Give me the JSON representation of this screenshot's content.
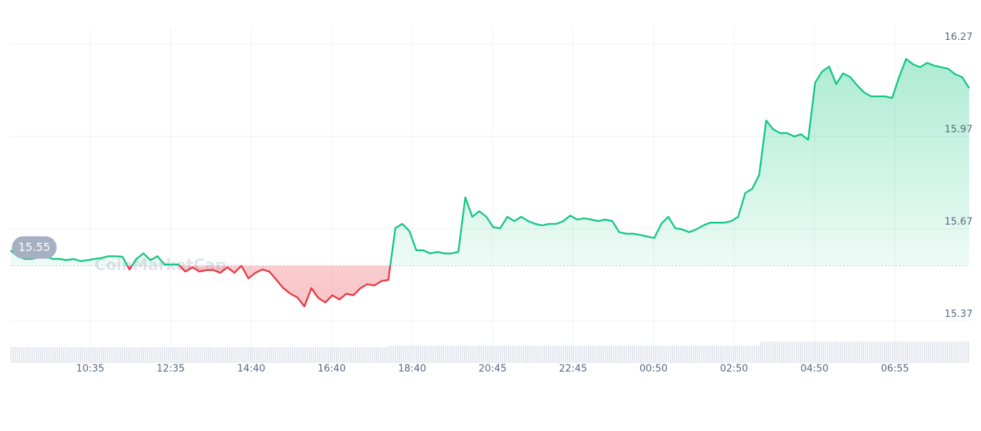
{
  "chart_data": {
    "type": "line",
    "watermark": "CoinMarketCap",
    "baseline": 15.55,
    "up_color": "#16c784",
    "down_color": "#ea3943",
    "xlim": [
      0,
      137
    ],
    "ylim": [
      15.37,
      16.27
    ],
    "yticks": [
      15.37,
      15.67,
      15.97,
      16.27
    ],
    "xticks": [
      {
        "value": 11.4,
        "label": "10:35"
      },
      {
        "value": 22.9,
        "label": "12:35"
      },
      {
        "value": 34.4,
        "label": "14:40"
      },
      {
        "value": 45.9,
        "label": "16:40"
      },
      {
        "value": 57.4,
        "label": "18:40"
      },
      {
        "value": 68.9,
        "label": "20:45"
      },
      {
        "value": 80.4,
        "label": "22:45"
      },
      {
        "value": 91.9,
        "label": "00:50"
      },
      {
        "value": 103.4,
        "label": "02:50"
      },
      {
        "value": 114.9,
        "label": "04:50"
      },
      {
        "value": 126.4,
        "label": "06:55"
      }
    ],
    "grid": true,
    "values": [
      15.6,
      15.581,
      15.572,
      15.572,
      15.577,
      15.581,
      15.572,
      15.572,
      15.568,
      15.572,
      15.565,
      15.568,
      15.572,
      15.575,
      15.581,
      15.581,
      15.579,
      15.538,
      15.572,
      15.59,
      15.568,
      15.581,
      15.554,
      15.554,
      15.554,
      15.531,
      15.545,
      15.531,
      15.536,
      15.536,
      15.527,
      15.545,
      15.527,
      15.55,
      15.509,
      15.527,
      15.538,
      15.531,
      15.504,
      15.477,
      15.459,
      15.447,
      15.418,
      15.477,
      15.445,
      15.431,
      15.454,
      15.44,
      15.459,
      15.454,
      15.477,
      15.49,
      15.486,
      15.5,
      15.504,
      15.672,
      15.686,
      15.663,
      15.6,
      15.6,
      15.59,
      15.595,
      15.59,
      15.59,
      15.595,
      15.772,
      15.709,
      15.727,
      15.709,
      15.675,
      15.672,
      15.709,
      15.695,
      15.709,
      15.695,
      15.686,
      15.681,
      15.686,
      15.686,
      15.695,
      15.713,
      15.7,
      15.704,
      15.7,
      15.695,
      15.7,
      15.695,
      15.659,
      15.654,
      15.654,
      15.65,
      15.645,
      15.64,
      15.686,
      15.709,
      15.672,
      15.668,
      15.659,
      15.668,
      15.681,
      15.69,
      15.69,
      15.69,
      15.695,
      15.709,
      15.786,
      15.8,
      15.845,
      16.022,
      15.993,
      15.981,
      15.981,
      15.97,
      15.977,
      15.959,
      16.145,
      16.181,
      16.197,
      16.14,
      16.175,
      16.163,
      16.136,
      16.113,
      16.1,
      16.1,
      16.1,
      16.095,
      16.163,
      16.222,
      16.204,
      16.195,
      16.209,
      16.2,
      16.195,
      16.19,
      16.172,
      16.163,
      16.127
    ]
  }
}
